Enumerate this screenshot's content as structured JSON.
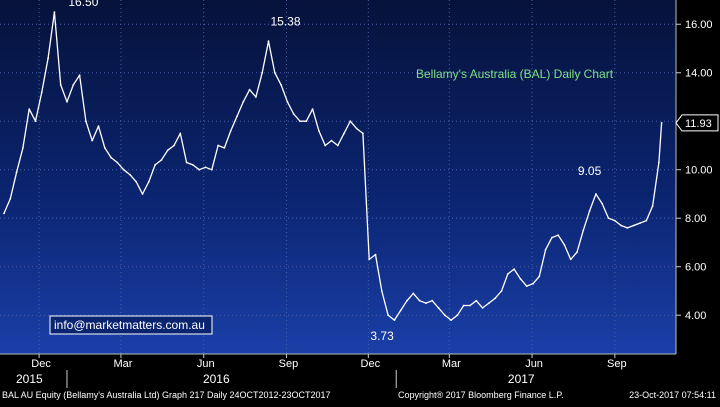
{
  "chart_data": {
    "type": "line",
    "title": "Bellamy's Australia (BAL) Daily Chart",
    "xlabel": "",
    "ylabel": "",
    "ylim": [
      2.4,
      17.0
    ],
    "y_ticks": [
      "16.00",
      "14.00",
      "12.00",
      "10.00",
      "8.00",
      "6.00",
      "4.00"
    ],
    "y_tick_values": [
      16,
      14,
      12,
      10,
      8,
      6,
      4
    ],
    "x_month_ticks": [
      "Dec",
      "Mar",
      "Jun",
      "Sep",
      "Dec",
      "Mar",
      "Jun",
      "Sep"
    ],
    "x_year_labels": [
      "2015",
      "2016",
      "2017"
    ],
    "last_price_label": "11.93",
    "last_price_value": 11.93,
    "annotations": [
      {
        "text": "16.50",
        "value": 16.5
      },
      {
        "text": "15.38",
        "value": 15.38
      },
      {
        "text": "3.73",
        "value": 3.73
      },
      {
        "text": "9.05",
        "value": 9.05
      }
    ],
    "watermark": "info@marketmatters.com.au",
    "grid": true,
    "series": [
      {
        "x": [
          "2015-10-23",
          "2015-10-30",
          "2015-11-06",
          "2015-11-13",
          "2015-11-20",
          "2015-11-27",
          "2015-12-04",
          "2015-12-11",
          "2015-12-18",
          "2015-12-25",
          "2016-01-01",
          "2016-01-08",
          "2016-01-15",
          "2016-01-22",
          "2016-01-29",
          "2016-02-05",
          "2016-02-12",
          "2016-02-19",
          "2016-02-26",
          "2016-03-04",
          "2016-03-11",
          "2016-03-18",
          "2016-03-25",
          "2016-04-01",
          "2016-04-08",
          "2016-04-15",
          "2016-04-22",
          "2016-04-29",
          "2016-05-06",
          "2016-05-13",
          "2016-05-20",
          "2016-05-27",
          "2016-06-03",
          "2016-06-10",
          "2016-06-17",
          "2016-06-24",
          "2016-07-01",
          "2016-07-08",
          "2016-07-15",
          "2016-07-22",
          "2016-07-29",
          "2016-08-05",
          "2016-08-12",
          "2016-08-19",
          "2016-08-26",
          "2016-09-02",
          "2016-09-09",
          "2016-09-16",
          "2016-09-23",
          "2016-09-30",
          "2016-10-07",
          "2016-10-14",
          "2016-10-21",
          "2016-10-28",
          "2016-11-04",
          "2016-11-11",
          "2016-11-18",
          "2016-11-25",
          "2016-12-02",
          "2016-12-09",
          "2016-12-16",
          "2016-12-23",
          "2016-12-30",
          "2017-01-06",
          "2017-01-13",
          "2017-01-20",
          "2017-01-27",
          "2017-02-03",
          "2017-02-10",
          "2017-02-17",
          "2017-02-24",
          "2017-03-03",
          "2017-03-10",
          "2017-03-17",
          "2017-03-24",
          "2017-03-31",
          "2017-04-07",
          "2017-04-14",
          "2017-04-21",
          "2017-04-28",
          "2017-05-05",
          "2017-05-12",
          "2017-05-19",
          "2017-05-26",
          "2017-06-02",
          "2017-06-09",
          "2017-06-16",
          "2017-06-23",
          "2017-06-30",
          "2017-07-07",
          "2017-07-14",
          "2017-07-21",
          "2017-07-28",
          "2017-08-04",
          "2017-08-11",
          "2017-08-18",
          "2017-08-25",
          "2017-09-01",
          "2017-09-08",
          "2017-09-15",
          "2017-09-22",
          "2017-09-29",
          "2017-10-06",
          "2017-10-13",
          "2017-10-20",
          "2017-10-23"
        ],
        "values": [
          8.2,
          8.8,
          9.9,
          10.9,
          12.5,
          12.0,
          13.2,
          14.6,
          16.5,
          13.5,
          12.8,
          13.5,
          13.9,
          12.0,
          11.2,
          11.8,
          10.9,
          10.5,
          10.3,
          10.0,
          9.8,
          9.5,
          9.0,
          9.5,
          10.2,
          10.4,
          10.8,
          11.0,
          11.5,
          10.3,
          10.2,
          10.0,
          10.1,
          10.0,
          11.0,
          10.9,
          11.6,
          12.2,
          12.8,
          13.3,
          13.0,
          14.0,
          15.3,
          14.0,
          13.5,
          12.8,
          12.3,
          12.0,
          12.0,
          12.5,
          11.6,
          11.0,
          11.2,
          11.0,
          11.5,
          12.0,
          11.7,
          11.5,
          6.3,
          6.5,
          5.0,
          4.0,
          3.8,
          4.2,
          4.6,
          4.9,
          4.6,
          4.5,
          4.6,
          4.3,
          4.0,
          3.8,
          4.0,
          4.4,
          4.4,
          4.6,
          4.3,
          4.5,
          4.7,
          5.0,
          5.7,
          5.9,
          5.5,
          5.2,
          5.3,
          5.6,
          6.7,
          7.2,
          7.3,
          6.9,
          6.3,
          6.6,
          7.5,
          8.3,
          9.0,
          8.6,
          8.0,
          7.9,
          7.7,
          7.6,
          7.7,
          7.8,
          7.9,
          8.5,
          10.3,
          11.93
        ]
      }
    ]
  },
  "footer": {
    "left": "BAL AU Equity (Bellamy's Australia Ltd) Graph 217  Daily 24OCT2012-23OCT2017",
    "center": "Copyright® 2017 Bloomberg Finance L.P.",
    "right": "23-Oct-2017 07:54:11"
  }
}
